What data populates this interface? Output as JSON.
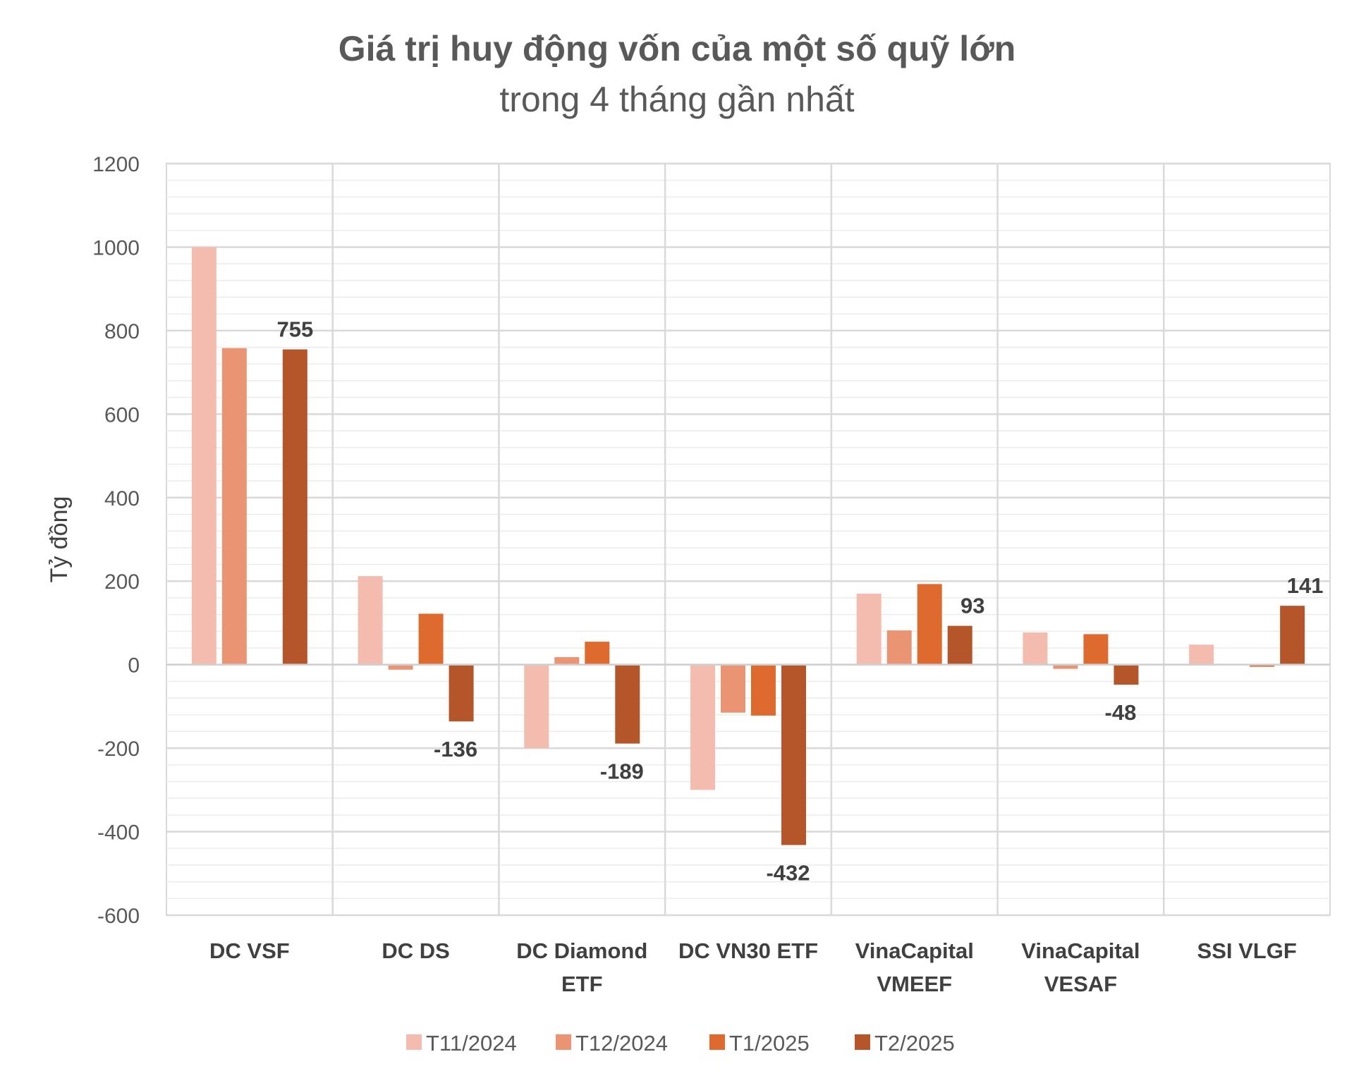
{
  "chart_data": {
    "type": "bar",
    "title": "Giá trị huy động vốn của một số quỹ lớn",
    "subtitle": "trong 4 tháng gần nhất",
    "ylabel": "Tỷ đồng",
    "xlabel": "",
    "ylim": [
      -600,
      1200
    ],
    "yticks": [
      1200,
      1000,
      800,
      600,
      400,
      200,
      0,
      -200,
      -400,
      -600
    ],
    "grid": true,
    "legend_position": "bottom",
    "categories": [
      [
        "DC VSF"
      ],
      [
        "DC DS"
      ],
      [
        "DC Diamond",
        "ETF"
      ],
      [
        "DC VN30 ETF"
      ],
      [
        "VinaCapital",
        "VMEEF"
      ],
      [
        "VinaCapital",
        "VESAF"
      ],
      [
        "SSI VLGF"
      ]
    ],
    "series": [
      {
        "name": "T11/2024",
        "color": "#F4BCAE",
        "values": [
          1000,
          212,
          -200,
          -300,
          170,
          77,
          48
        ]
      },
      {
        "name": "T12/2024",
        "color": "#EB9473",
        "values": [
          758,
          -12,
          18,
          -115,
          82,
          -10,
          null
        ]
      },
      {
        "name": "T1/2025",
        "color": "#DE6A2E",
        "values": [
          null,
          122,
          55,
          -122,
          193,
          73,
          -5
        ]
      },
      {
        "name": "T2/2025",
        "color": "#B5562A",
        "values": [
          755,
          -136,
          -189,
          -432,
          93,
          -48,
          141
        ]
      }
    ],
    "data_labels": [
      {
        "series": "T2/2025",
        "category_index": 0,
        "text": "755"
      },
      {
        "series": "T2/2025",
        "category_index": 1,
        "text": "-136"
      },
      {
        "series": "T2/2025",
        "category_index": 2,
        "text": "-189"
      },
      {
        "series": "T2/2025",
        "category_index": 3,
        "text": "-432"
      },
      {
        "series": "T2/2025",
        "category_index": 4,
        "text": "93"
      },
      {
        "series": "T2/2025",
        "category_index": 5,
        "text": "-48"
      },
      {
        "series": "T2/2025",
        "category_index": 6,
        "text": "141"
      }
    ]
  }
}
